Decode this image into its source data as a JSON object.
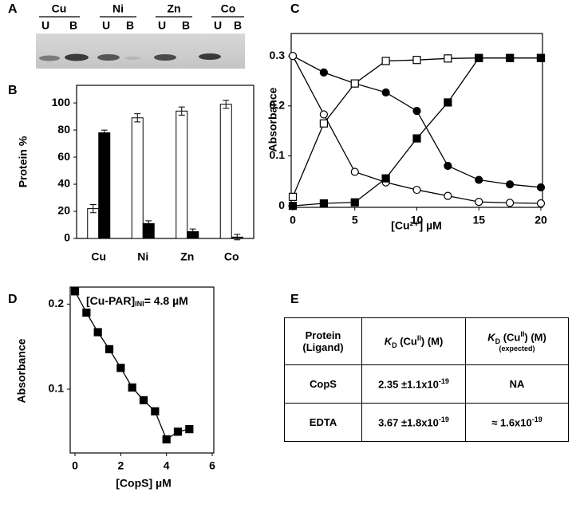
{
  "panel_labels": [
    "A",
    "B",
    "C",
    "D",
    "E"
  ],
  "gel": {
    "metals": [
      "Cu",
      "Ni",
      "Zn",
      "Co"
    ],
    "lanes": [
      "U",
      "B",
      "U",
      "B",
      "U",
      "B",
      "U",
      "B"
    ]
  },
  "chart_data": [
    {
      "type": "bar",
      "categories": [
        "Cu",
        "Ni",
        "Zn",
        "Co"
      ],
      "ylabel": "Protein %",
      "series": [
        {
          "color": "#ffffff",
          "values": [
            22,
            89,
            94,
            99
          ],
          "errors": [
            3,
            3,
            3,
            3
          ]
        },
        {
          "color": "#000000",
          "values": [
            78,
            11,
            5,
            1
          ],
          "errors": [
            2,
            2,
            2,
            2
          ]
        }
      ],
      "ylim": [
        0,
        113
      ],
      "yticks": [
        0,
        20,
        40,
        60,
        80,
        100
      ]
    },
    {
      "type": "line",
      "xlabel": "[Cu²⁺] µM",
      "ylabel": "Absorbance",
      "x": [
        0,
        2.5,
        5,
        7.5,
        10,
        12.5,
        15,
        17.5,
        20
      ],
      "series": [
        {
          "marker": "circle",
          "color": "#000000",
          "values": [
            0.3,
            0.267,
            0.245,
            0.227,
            0.19,
            0.08,
            0.052,
            0.043,
            0.037
          ]
        },
        {
          "marker": "circle",
          "color": "#ffffff",
          "values": [
            0.3,
            0.183,
            0.068,
            0.047,
            0.032,
            0.02,
            0.008,
            0.006,
            0.005
          ]
        },
        {
          "marker": "square",
          "color": "#ffffff",
          "values": [
            0.018,
            0.165,
            0.245,
            0.29,
            0.292,
            0.295,
            0.296,
            0.296,
            0.296
          ]
        },
        {
          "marker": "square",
          "color": "#000000",
          "values": [
            0,
            0.005,
            0.007,
            0.055,
            0.135,
            0.207,
            0.296,
            0.296,
            0.296
          ]
        }
      ],
      "xlim": [
        -0.13,
        20.13
      ],
      "xticks": [
        0,
        5,
        10,
        15,
        20
      ],
      "ylim": [
        -0.003,
        0.345
      ],
      "yticks": [
        0,
        0.1,
        0.2,
        0.3
      ]
    },
    {
      "type": "line",
      "xlabel": "[CopS] µM",
      "ylabel": "Absorbance",
      "annotation": [
        "[Cu-PAR]",
        "INI",
        "= 4.8 µM"
      ],
      "x": [
        0,
        0.5,
        1,
        1.5,
        2,
        2.5,
        3,
        3.5,
        4,
        4.5,
        5
      ],
      "series": [
        {
          "marker": "square",
          "color": "#000000",
          "values": [
            0.215,
            0.19,
            0.167,
            0.147,
            0.125,
            0.102,
            0.087,
            0.074,
            0.041,
            0.05,
            0.053
          ]
        }
      ],
      "xlim": [
        -0.21,
        6.07
      ],
      "xticks": [
        0,
        2,
        4,
        6
      ],
      "ylim": [
        0.025,
        0.22
      ],
      "yticks": [
        0.1,
        0.2
      ]
    }
  ],
  "table": {
    "header": [
      [
        "Protein",
        "(Ligand)"
      ],
      [
        "K",
        "D",
        " (Cu",
        "II",
        ") (M)"
      ],
      [
        "K",
        "D",
        " (Cu",
        "II",
        ") (M)",
        "(expected)"
      ]
    ],
    "rows": [
      [
        [
          "CopS"
        ],
        [
          "2.35 ±1.1x10",
          "-19"
        ],
        [
          "NA"
        ]
      ],
      [
        [
          "EDTA"
        ],
        [
          "3.67 ±1.8x10",
          "-19"
        ],
        [
          "≈ 1.6x10",
          "-19"
        ]
      ]
    ]
  }
}
